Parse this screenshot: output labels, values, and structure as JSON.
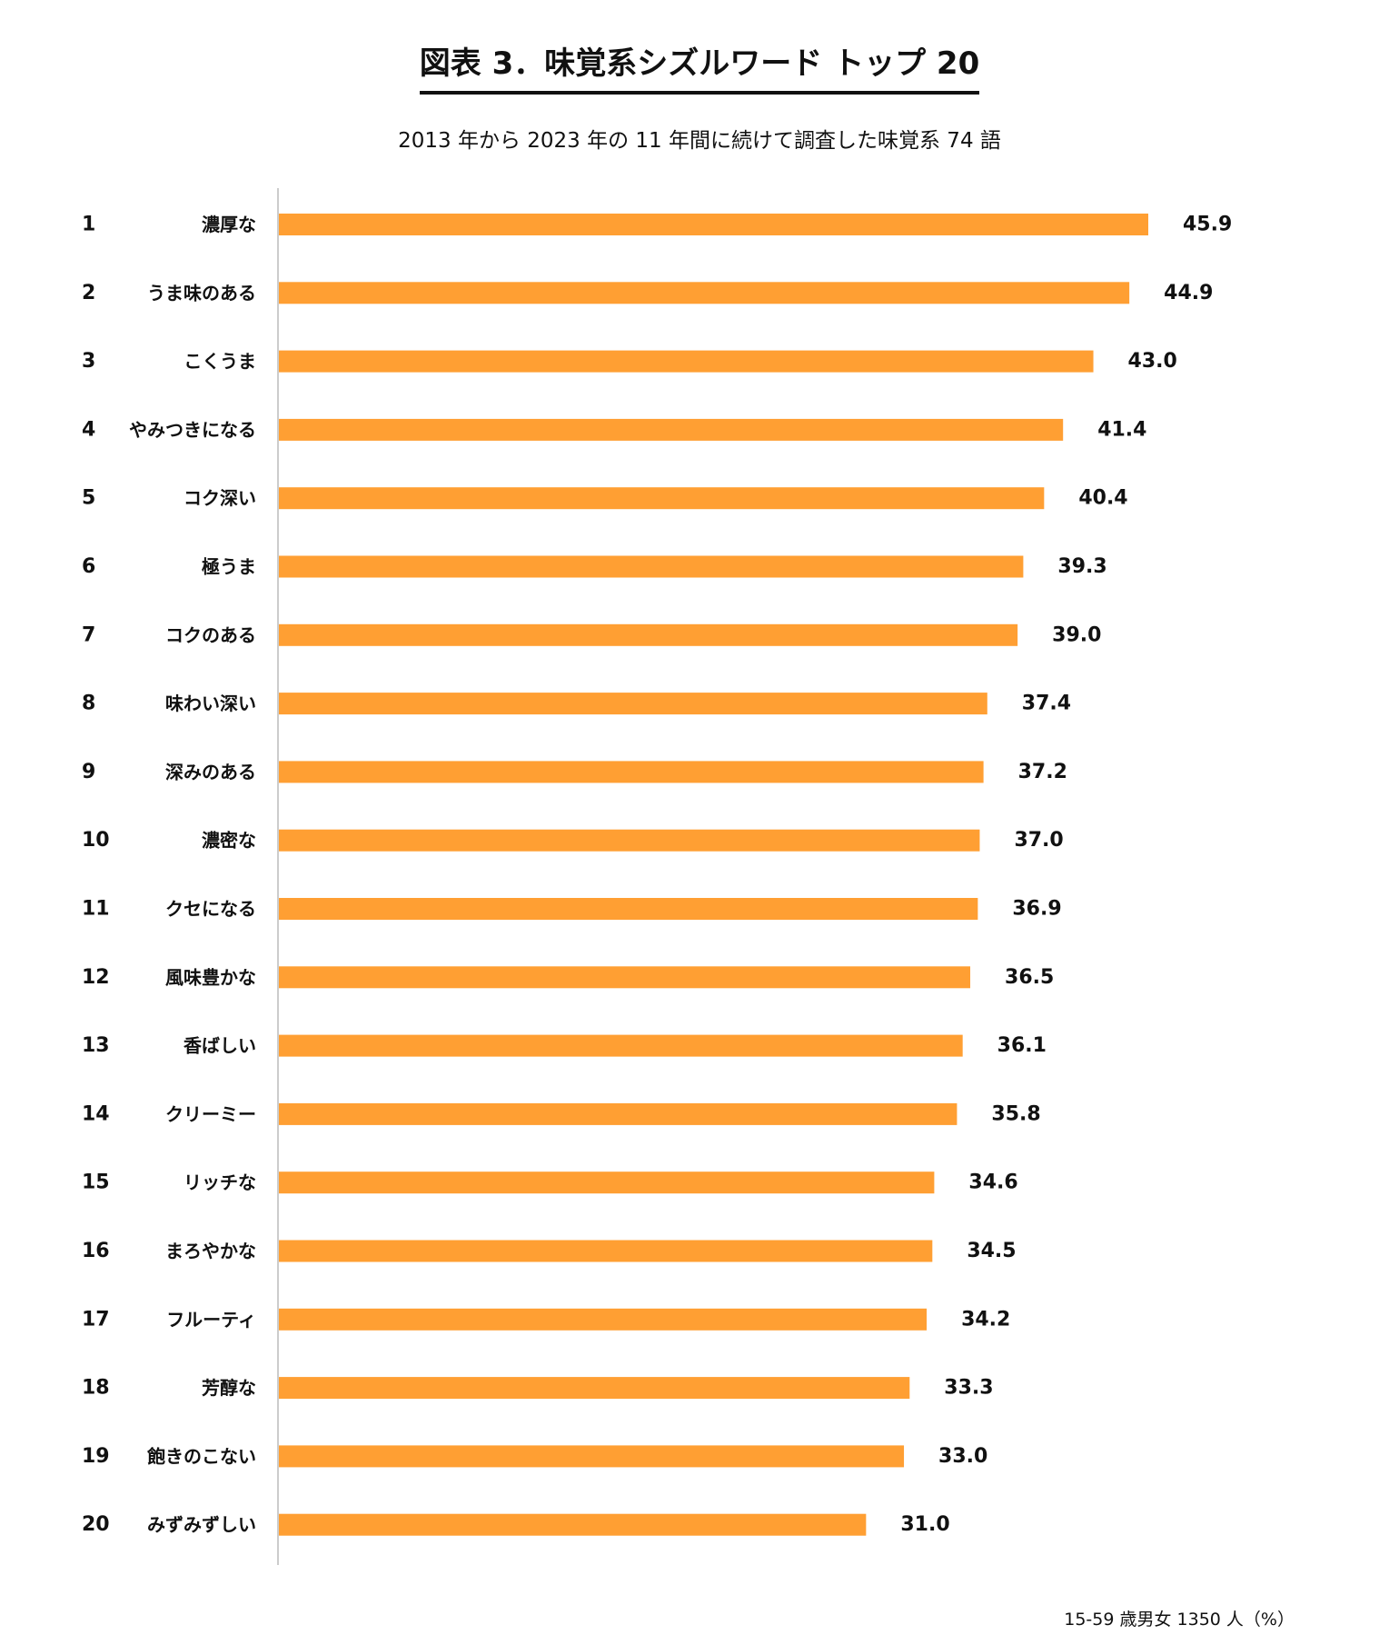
{
  "chart_data": {
    "type": "bar",
    "orientation": "horizontal",
    "title": "図表 3．味覚系シズルワード トップ 20",
    "subtitle": "2013 年から 2023 年の 11 年間に続けて調査した味覚系 74 語",
    "note": "15-59 歳男女 1350 人（%）",
    "ranks": [
      "1",
      "2",
      "3",
      "4",
      "5",
      "6",
      "7",
      "8",
      "9",
      "10",
      "11",
      "12",
      "13",
      "14",
      "15",
      "16",
      "17",
      "18",
      "19",
      "20"
    ],
    "categories": [
      "濃厚な",
      "うま味のある",
      "こくうま",
      "やみつきになる",
      "コク深い",
      "極うま",
      "コクのある",
      "味わい深い",
      "深みのある",
      "濃密な",
      "クセになる",
      "風味豊かな",
      "香ばしい",
      "クリーミー",
      "リッチな",
      "まろやかな",
      "フルーティ",
      "芳醇な",
      "飽きのこない",
      "みずみずしい"
    ],
    "values": [
      45.9,
      44.9,
      43.0,
      41.4,
      40.4,
      39.3,
      39.0,
      37.4,
      37.2,
      37.0,
      36.9,
      36.5,
      36.1,
      35.8,
      34.6,
      34.5,
      34.2,
      33.3,
      33.0,
      31.0
    ],
    "value_labels": [
      "45.9",
      "44.9",
      "43.0",
      "41.4",
      "40.4",
      "39.3",
      "39.0",
      "37.4",
      "37.2",
      "37.0",
      "36.9",
      "36.5",
      "36.1",
      "35.8",
      "34.6",
      "34.5",
      "34.2",
      "33.3",
      "33.0",
      "31.0"
    ],
    "bar_color": "#FF9F33",
    "axis_color": "#BBBBBB",
    "grid": false,
    "legend": "none"
  }
}
